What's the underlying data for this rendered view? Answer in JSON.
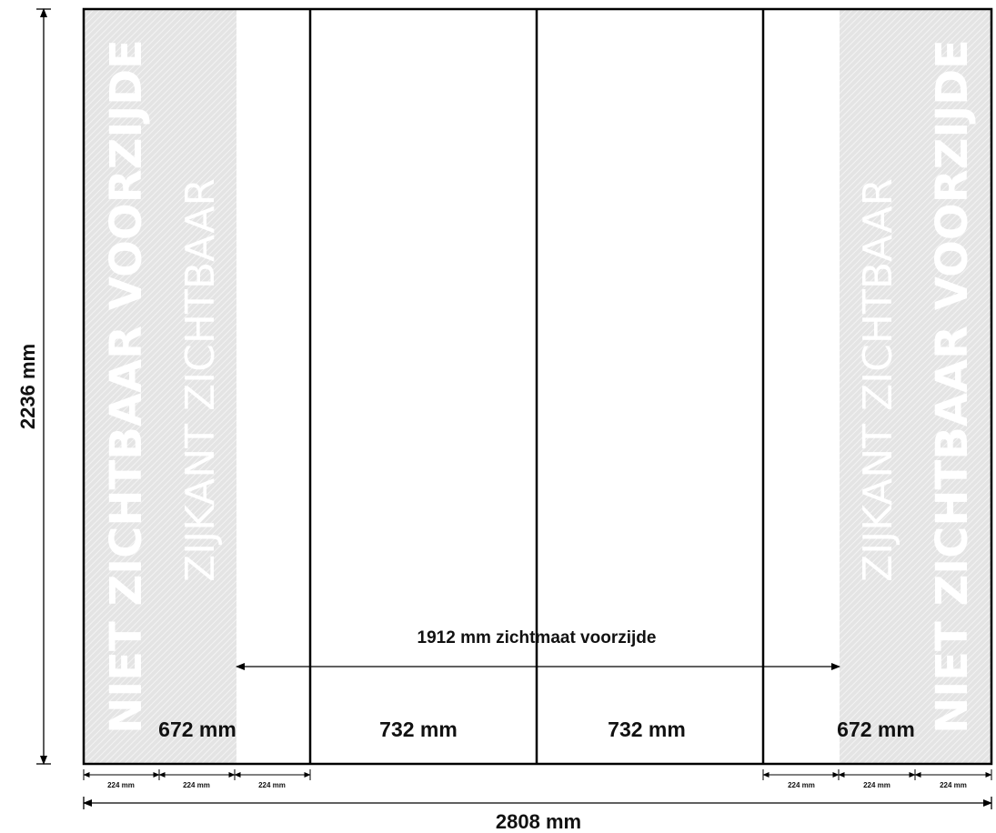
{
  "total_height_label": "2236 mm",
  "total_width_label": "2808 mm",
  "visible_width_label": "1912 mm zichtmaat voorzijde",
  "panels": [
    {
      "width_label": "672 mm"
    },
    {
      "width_label": "732 mm"
    },
    {
      "width_label": "732 mm"
    },
    {
      "width_label": "672 mm"
    }
  ],
  "segment_label": "224 mm",
  "watermarks": {
    "not_visible_front": "NIET ZICHTBAAR VOORZIJDE",
    "side_visible": "ZIJKANT ZICHTBAAR"
  },
  "colors": {
    "hatch_background": "#e4e4e4",
    "hatch_line": "#f2f2f2",
    "outline": "#000000",
    "text": "#111111"
  }
}
